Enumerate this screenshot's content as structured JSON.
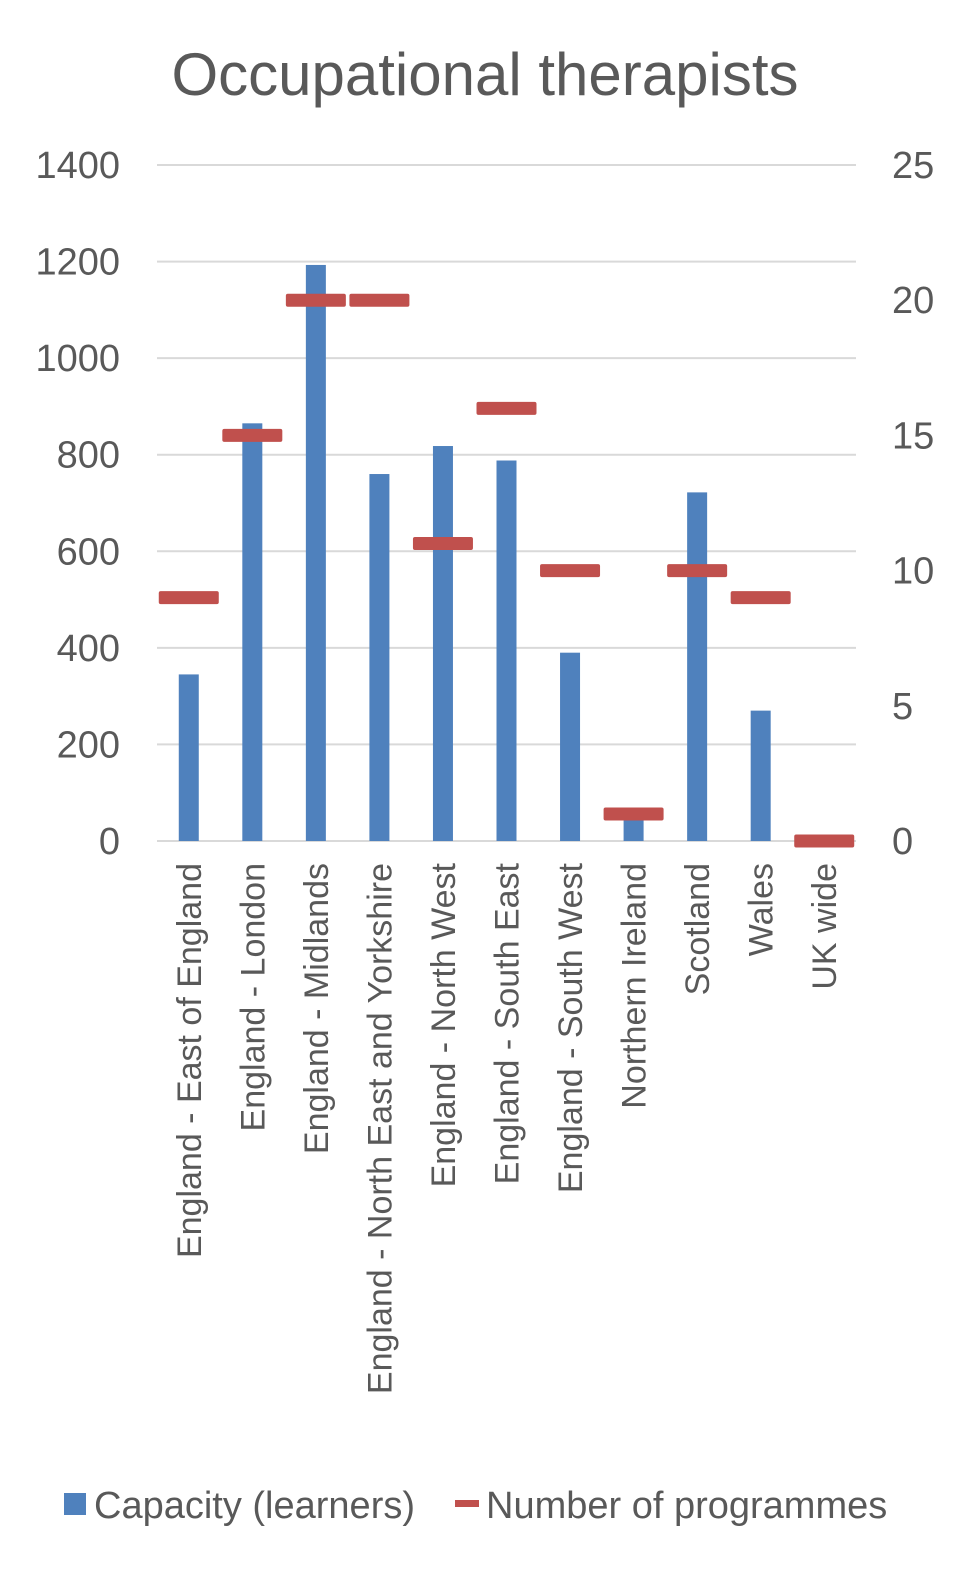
{
  "chart_data": {
    "type": "bar",
    "title": "Occupational therapists",
    "categories": [
      "England - East of England",
      "England - London",
      "England - Midlands",
      "England - North East and Yorkshire",
      "England - North West",
      "England - South East",
      "England - South West",
      "Northern Ireland",
      "Scotland",
      "Wales",
      "UK wide"
    ],
    "series": [
      {
        "name": "Capacity (learners)",
        "type": "bar",
        "axis": "left",
        "color": "#4f81bd",
        "values": [
          345,
          865,
          1193,
          760,
          818,
          788,
          390,
          45,
          722,
          270,
          0
        ]
      },
      {
        "name": "Number of programmes",
        "type": "marker",
        "axis": "right",
        "color": "#c0504d",
        "values": [
          9,
          15,
          20,
          20,
          11,
          16,
          10,
          1,
          10,
          9,
          0
        ]
      }
    ],
    "y_left": {
      "min": 0,
      "max": 1400,
      "ticks": [
        "0",
        "200",
        "400",
        "600",
        "800",
        "1000",
        "1200",
        "1400"
      ]
    },
    "y_right": {
      "min": 0,
      "max": 25,
      "ticks": [
        "0",
        "5",
        "10",
        "15",
        "20",
        "25"
      ]
    },
    "grid": true,
    "legend_position": "bottom"
  }
}
